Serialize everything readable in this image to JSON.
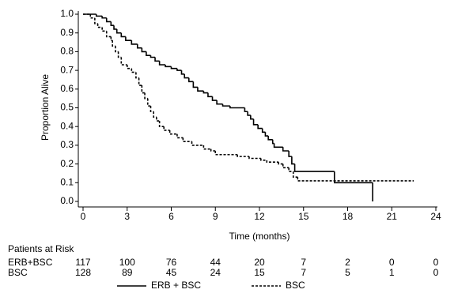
{
  "chart_data": {
    "type": "step",
    "xlabel": "Time (months)",
    "ylabel": "Proportion Alive",
    "xlim": [
      0,
      24
    ],
    "xticks": [
      0,
      3,
      6,
      9,
      12,
      15,
      18,
      21,
      24
    ],
    "ylim": [
      0,
      1
    ],
    "yticks": [
      {
        "value": 0,
        "label": "0.0"
      },
      0.1,
      0.2,
      0.3,
      0.4,
      0.5,
      0.6,
      0.7,
      0.8,
      0.9,
      {
        "value": 1,
        "label": "1.0"
      }
    ],
    "series": [
      {
        "name": "ERB + BSC",
        "color": "#000000",
        "dash": "solid",
        "x": [
          0,
          0.9,
          1.3,
          1.6,
          1.9,
          2.1,
          2.3,
          2.6,
          2.9,
          3.3,
          3.7,
          4.0,
          4.3,
          4.6,
          4.9,
          5.2,
          5.6,
          6.0,
          6.4,
          6.7,
          6.9,
          7.2,
          7.5,
          7.8,
          8.2,
          8.5,
          8.8,
          9.1,
          9.5,
          10.0,
          11.0,
          11.2,
          11.4,
          11.6,
          11.9,
          12.2,
          12.4,
          12.6,
          12.9,
          13.0,
          13.6,
          14.0,
          14.2,
          14.4,
          17.1,
          19.7
        ],
        "values": [
          1.0,
          0.99,
          0.98,
          0.96,
          0.94,
          0.92,
          0.9,
          0.88,
          0.86,
          0.84,
          0.82,
          0.8,
          0.78,
          0.77,
          0.75,
          0.73,
          0.72,
          0.71,
          0.7,
          0.68,
          0.66,
          0.64,
          0.61,
          0.59,
          0.58,
          0.56,
          0.54,
          0.52,
          0.51,
          0.5,
          0.48,
          0.46,
          0.44,
          0.41,
          0.39,
          0.37,
          0.35,
          0.33,
          0.31,
          0.29,
          0.27,
          0.24,
          0.2,
          0.16,
          0.1,
          0.0
        ]
      },
      {
        "name": "BSC",
        "color": "#000000",
        "dash": "dashed",
        "x": [
          0,
          0.5,
          0.8,
          1.0,
          1.3,
          1.6,
          1.9,
          2.0,
          2.2,
          2.4,
          2.6,
          3.0,
          3.3,
          3.6,
          3.8,
          4.0,
          4.2,
          4.4,
          4.6,
          4.8,
          5.0,
          5.2,
          5.5,
          5.9,
          6.4,
          6.8,
          7.4,
          8.2,
          8.7,
          9.0,
          10.5,
          11.3,
          12.1,
          12.5,
          13.3,
          13.6,
          14.0,
          14.3,
          14.6,
          22.5
        ],
        "values": [
          1.0,
          0.98,
          0.95,
          0.93,
          0.91,
          0.88,
          0.86,
          0.83,
          0.8,
          0.77,
          0.73,
          0.71,
          0.69,
          0.66,
          0.62,
          0.58,
          0.55,
          0.51,
          0.48,
          0.45,
          0.43,
          0.4,
          0.38,
          0.36,
          0.34,
          0.32,
          0.3,
          0.28,
          0.27,
          0.25,
          0.24,
          0.23,
          0.22,
          0.21,
          0.2,
          0.18,
          0.16,
          0.13,
          0.11,
          0.11
        ]
      }
    ]
  },
  "risk_table": {
    "title": "Patients at Risk",
    "rows": [
      {
        "label": "ERB+BSC",
        "counts": [
          117,
          100,
          76,
          44,
          20,
          7,
          2,
          0,
          0
        ]
      },
      {
        "label": "BSC",
        "counts": [
          128,
          89,
          45,
          24,
          15,
          7,
          5,
          1,
          0
        ]
      }
    ]
  }
}
